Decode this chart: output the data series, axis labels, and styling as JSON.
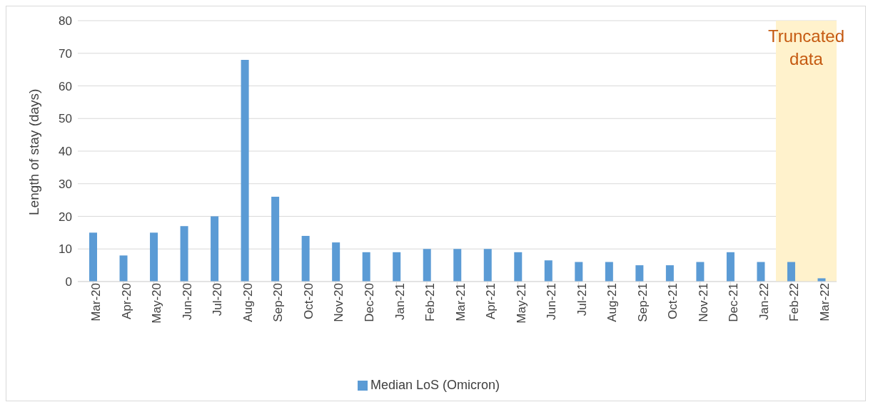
{
  "chart_data": {
    "type": "bar",
    "ylabel": "Length of stay (days)",
    "categories": [
      "Mar-20",
      "Apr-20",
      "May-20",
      "Jun-20",
      "Jul-20",
      "Aug-20",
      "Sep-20",
      "Oct-20",
      "Nov-20",
      "Dec-20",
      "Jan-21",
      "Feb-21",
      "Mar-21",
      "Apr-21",
      "May-21",
      "Jun-21",
      "Jul-21",
      "Aug-21",
      "Sep-21",
      "Oct-21",
      "Nov-21",
      "Dec-21",
      "Jan-22",
      "Feb-22",
      "Mar-22"
    ],
    "series": [
      {
        "name": "Median LoS (Omicron)",
        "color": "#5b9bd5",
        "values": [
          15,
          8,
          15,
          17,
          20,
          68,
          26,
          14,
          12,
          9,
          9,
          10,
          10,
          10,
          9,
          6.5,
          6,
          6,
          5,
          5,
          6,
          9,
          6,
          6,
          1
        ]
      }
    ],
    "ylim": [
      0,
      80
    ],
    "yticks": [
      0,
      10,
      20,
      30,
      40,
      50,
      60,
      70,
      80
    ],
    "grid": "y",
    "legend": "bottom",
    "bands": [
      {
        "axis": "x",
        "from": "Feb-22",
        "to": "Mar-22",
        "label": "Truncated data",
        "color": "#fff2cc"
      }
    ]
  }
}
